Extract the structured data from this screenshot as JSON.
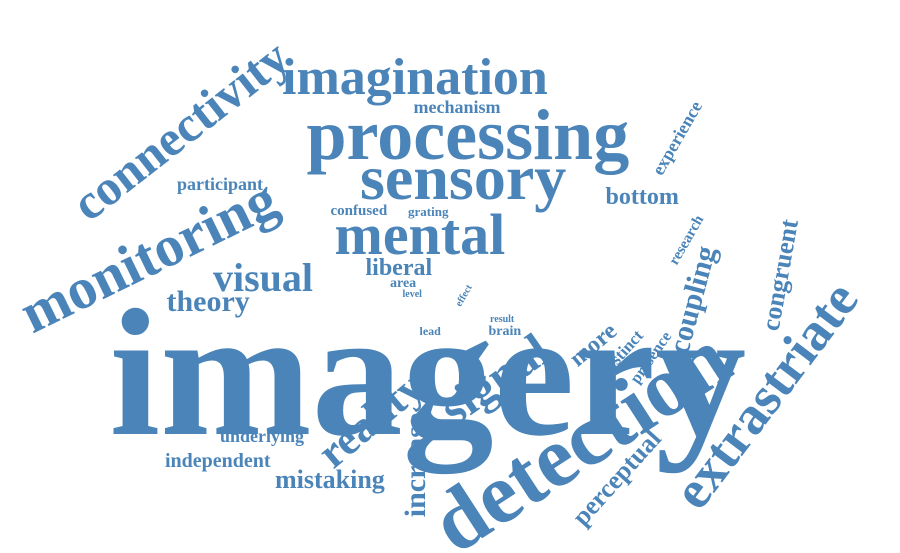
{
  "word_cloud": {
    "color": "#4a84b8",
    "words": [
      {
        "text": "imagery",
        "orientation": "horizontal"
      },
      {
        "text": "detection",
        "orientation": "rotated-up"
      },
      {
        "text": "processing",
        "orientation": "horizontal"
      },
      {
        "text": "sensory",
        "orientation": "horizontal"
      },
      {
        "text": "mental",
        "orientation": "horizontal"
      },
      {
        "text": "imagination",
        "orientation": "horizontal"
      },
      {
        "text": "monitoring",
        "orientation": "rotated-up"
      },
      {
        "text": "connectivity",
        "orientation": "rotated-up"
      },
      {
        "text": "extrastriate",
        "orientation": "rotated-up"
      },
      {
        "text": "signal",
        "orientation": "rotated-up"
      },
      {
        "text": "reality",
        "orientation": "rotated-up"
      },
      {
        "text": "visual",
        "orientation": "horizontal"
      },
      {
        "text": "theory",
        "orientation": "horizontal"
      },
      {
        "text": "coupling",
        "orientation": "vertical-up"
      },
      {
        "text": "congruent",
        "orientation": "vertical-up"
      },
      {
        "text": "increase",
        "orientation": "vertical-up"
      },
      {
        "text": "perceptual",
        "orientation": "rotated-up"
      },
      {
        "text": "mistaking",
        "orientation": "horizontal"
      },
      {
        "text": "independent",
        "orientation": "horizontal"
      },
      {
        "text": "underlying",
        "orientation": "horizontal"
      },
      {
        "text": "participant",
        "orientation": "horizontal"
      },
      {
        "text": "bottom",
        "orientation": "horizontal"
      },
      {
        "text": "experience",
        "orientation": "rotated-up"
      },
      {
        "text": "mechanism",
        "orientation": "horizontal"
      },
      {
        "text": "liberal",
        "orientation": "horizontal"
      },
      {
        "text": "more",
        "orientation": "rotated-up"
      },
      {
        "text": "distinct",
        "orientation": "rotated-up"
      },
      {
        "text": "presence",
        "orientation": "rotated-up"
      },
      {
        "text": "research",
        "orientation": "rotated-up"
      },
      {
        "text": "confused",
        "orientation": "horizontal"
      },
      {
        "text": "grating",
        "orientation": "horizontal"
      },
      {
        "text": "area",
        "orientation": "horizontal"
      },
      {
        "text": "level",
        "orientation": "horizontal"
      },
      {
        "text": "effect",
        "orientation": "rotated-up"
      },
      {
        "text": "result",
        "orientation": "horizontal"
      },
      {
        "text": "brain",
        "orientation": "horizontal"
      },
      {
        "text": "lead",
        "orientation": "horizontal"
      }
    ]
  }
}
